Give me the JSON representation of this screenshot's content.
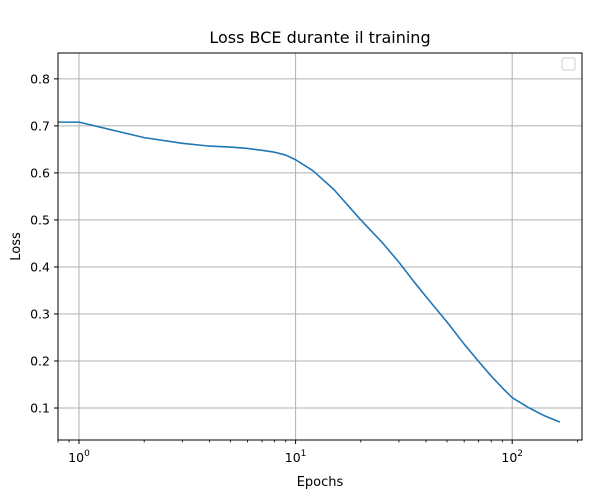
{
  "chart_data": {
    "type": "line",
    "title": "Loss BCE durante il training",
    "xlabel": "Epochs",
    "ylabel": "Loss",
    "xscale": "log",
    "xlim": [
      0.8,
      210
    ],
    "ylim": [
      0.032,
      0.855
    ],
    "grid": true,
    "legend": "top-right",
    "x_major_ticks": [
      {
        "value": 1,
        "base": "10",
        "exp": "0"
      },
      {
        "value": 10,
        "base": "10",
        "exp": "1"
      },
      {
        "value": 100,
        "base": "10",
        "exp": "2"
      }
    ],
    "x_minor_ticks": [
      0.8,
      0.9,
      2,
      3,
      4,
      5,
      6,
      7,
      8,
      9,
      20,
      30,
      40,
      50,
      60,
      70,
      80,
      90,
      200
    ],
    "y_ticks": [
      {
        "value": 0.1,
        "label": "0.1"
      },
      {
        "value": 0.2,
        "label": "0.2"
      },
      {
        "value": 0.3,
        "label": "0.3"
      },
      {
        "value": 0.4,
        "label": "0.4"
      },
      {
        "value": 0.5,
        "label": "0.5"
      },
      {
        "value": 0.6,
        "label": "0.6"
      },
      {
        "value": 0.7,
        "label": "0.7"
      },
      {
        "value": 0.8,
        "label": "0.8"
      }
    ],
    "series": [
      {
        "color": "#1f77b4",
        "x": [
          0.8,
          1,
          2,
          3,
          4,
          5,
          6,
          7,
          8,
          9,
          10,
          12,
          15,
          20,
          25,
          30,
          35,
          40,
          50,
          60,
          70,
          80,
          90,
          100,
          120,
          140,
          166
        ],
        "y": [
          0.708,
          0.708,
          0.675,
          0.663,
          0.657,
          0.655,
          0.652,
          0.648,
          0.644,
          0.638,
          0.628,
          0.605,
          0.565,
          0.5,
          0.453,
          0.41,
          0.37,
          0.337,
          0.283,
          0.236,
          0.199,
          0.168,
          0.143,
          0.122,
          0.1,
          0.084,
          0.07
        ]
      }
    ]
  }
}
